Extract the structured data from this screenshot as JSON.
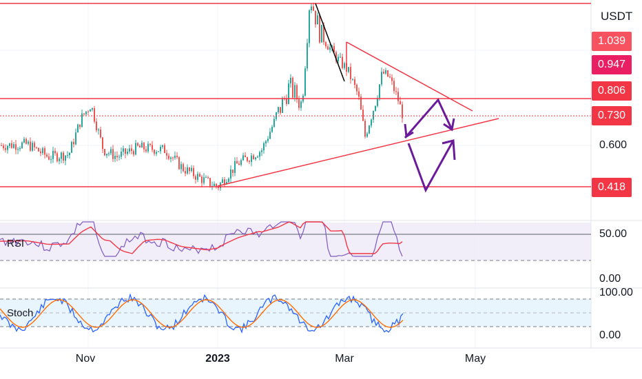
{
  "chart_data": {
    "type": "candlestick",
    "currency": "USDT",
    "price_axis_ticks": [
      "0.600"
    ],
    "price_labels": [
      {
        "value": "1.039",
        "color": "#f7525f"
      },
      {
        "value": "0.947",
        "color": "#e91e63"
      },
      {
        "value": "0.806",
        "color": "#f23645"
      },
      {
        "value": "0.730",
        "color": "#f23645"
      },
      {
        "value": "0.418",
        "color": "#f23645"
      }
    ],
    "horizontal_levels": [
      1.26,
      0.806,
      0.418
    ],
    "current_price": 0.73,
    "time_labels": [
      {
        "label": "Nov",
        "bold": false
      },
      {
        "label": "2023",
        "bold": true
      },
      {
        "label": "Mar",
        "bold": false
      },
      {
        "label": "May",
        "bold": false
      }
    ],
    "rsi_pane": {
      "label": "RSI",
      "ticks": [
        "50.00",
        "0.00"
      ]
    },
    "stoch_pane": {
      "label": "Stoch",
      "ticks": [
        "100.00",
        "0.00"
      ]
    },
    "colors": {
      "up": "#26a69a",
      "down": "#ef5350",
      "level": "#f23645",
      "rsi": "#7e57c2",
      "arrow": "#6a1b9a",
      "stoch_k": "#2962ff",
      "stoch_d": "#ff6d00"
    }
  }
}
